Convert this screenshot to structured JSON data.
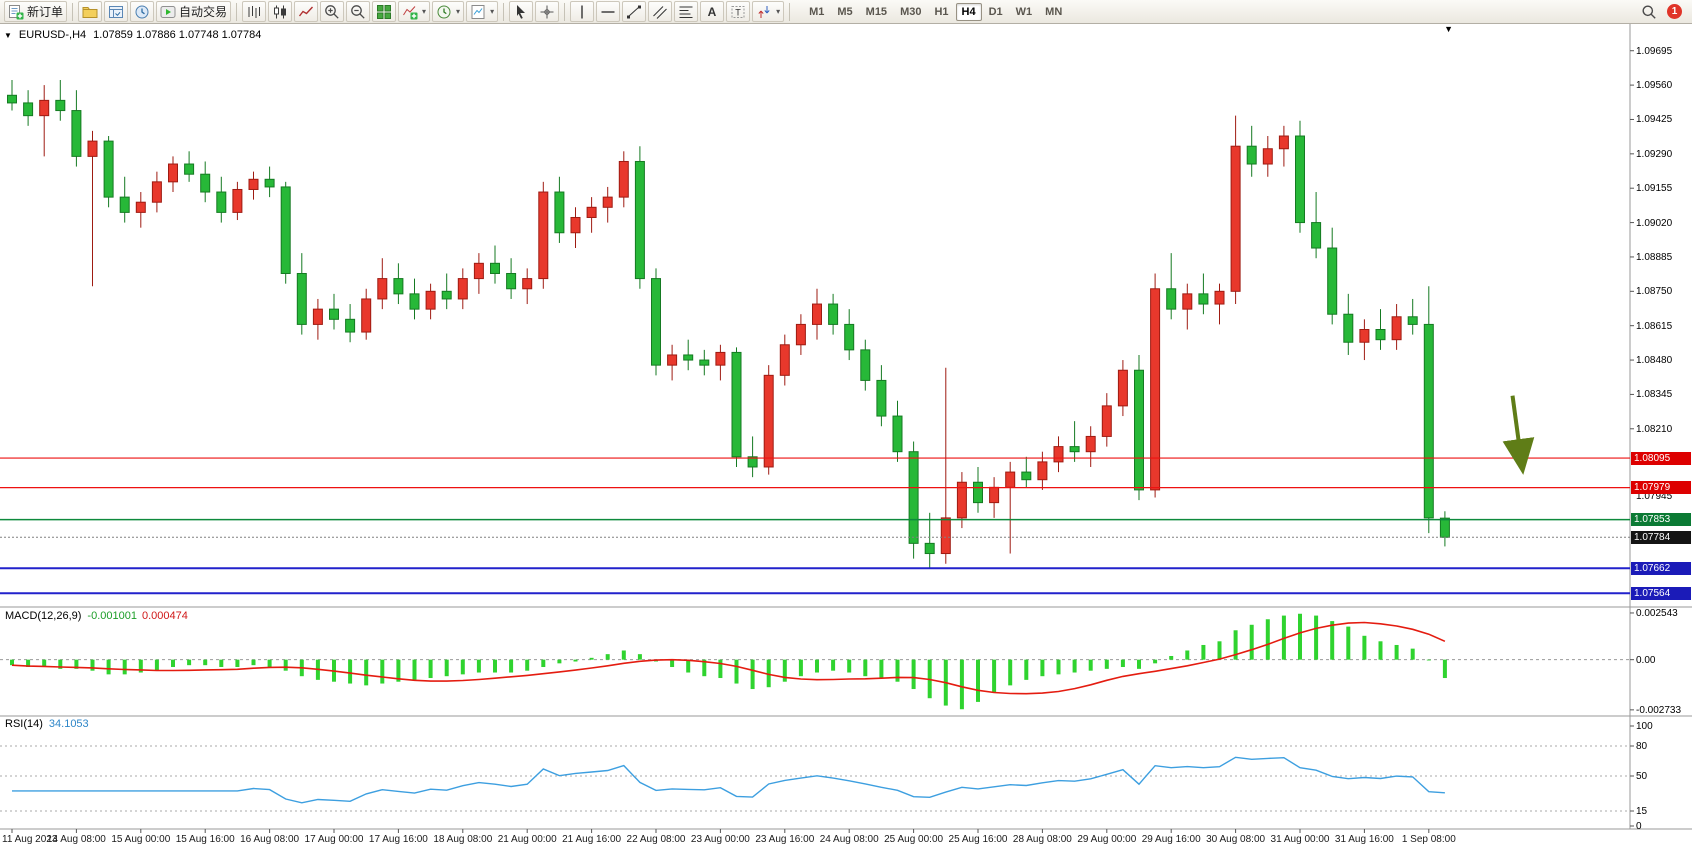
{
  "toolbar": {
    "new_order_label": "新订单",
    "autotrading_label": "自动交易",
    "timeframes": [
      "M1",
      "M5",
      "M15",
      "M30",
      "H1",
      "H4",
      "D1",
      "W1",
      "MN"
    ],
    "active_timeframe": "H4",
    "notification_count": "1"
  },
  "chart": {
    "title_symbol": "EURUSD-,H4",
    "title_ohlc": "1.07859 1.07886 1.07748 1.07784"
  },
  "chart_data": {
    "type": "candlestick",
    "symbol": "EURUSD-",
    "period": "H4",
    "price_axis_ticks": [
      "1.09695",
      "1.09560",
      "1.09425",
      "1.09290",
      "1.09155",
      "1.09020",
      "1.08885",
      "1.08750",
      "1.08615",
      "1.08480",
      "1.08345",
      "1.08210"
    ],
    "time_labels": [
      "11 Aug 2023",
      "14 Aug 08:00",
      "15 Aug 00:00",
      "15 Aug 16:00",
      "16 Aug 08:00",
      "17 Aug 00:00",
      "17 Aug 16:00",
      "18 Aug 08:00",
      "21 Aug 00:00",
      "21 Aug 16:00",
      "22 Aug 08:00",
      "23 Aug 00:00",
      "23 Aug 16:00",
      "24 Aug 08:00",
      "25 Aug 00:00",
      "25 Aug 16:00",
      "28 Aug 08:00",
      "29 Aug 00:00",
      "29 Aug 16:00",
      "30 Aug 08:00",
      "31 Aug 00:00",
      "31 Aug 16:00",
      "1 Sep 08:00"
    ],
    "label_every_bars": 4,
    "ohlc": [
      [
        1.0952,
        1.0958,
        1.0946,
        1.0949
      ],
      [
        1.0949,
        1.0954,
        1.094,
        1.0944
      ],
      [
        1.0944,
        1.0956,
        1.0928,
        1.095
      ],
      [
        1.095,
        1.0958,
        1.0942,
        1.0946
      ],
      [
        1.0946,
        1.0954,
        1.0924,
        1.0928
      ],
      [
        1.0928,
        1.0938,
        1.0877,
        1.0934
      ],
      [
        1.0934,
        1.0936,
        1.0908,
        1.0912
      ],
      [
        1.0912,
        1.092,
        1.0902,
        1.0906
      ],
      [
        1.0906,
        1.0914,
        1.09,
        1.091
      ],
      [
        1.091,
        1.0922,
        1.0906,
        1.0918
      ],
      [
        1.0918,
        1.0928,
        1.0914,
        1.0925
      ],
      [
        1.0925,
        1.093,
        1.0918,
        1.0921
      ],
      [
        1.0921,
        1.0926,
        1.091,
        1.0914
      ],
      [
        1.0914,
        1.092,
        1.0902,
        1.0906
      ],
      [
        1.0906,
        1.0918,
        1.0903,
        1.0915
      ],
      [
        1.0915,
        1.0922,
        1.0911,
        1.0919
      ],
      [
        1.0919,
        1.0924,
        1.0912,
        1.0916
      ],
      [
        1.0916,
        1.0918,
        1.0878,
        1.0882
      ],
      [
        1.0882,
        1.089,
        1.0858,
        1.0862
      ],
      [
        1.0862,
        1.0872,
        1.0856,
        1.0868
      ],
      [
        1.0868,
        1.0874,
        1.086,
        1.0864
      ],
      [
        1.0864,
        1.087,
        1.0855,
        1.0859
      ],
      [
        1.0859,
        1.0876,
        1.0856,
        1.0872
      ],
      [
        1.0872,
        1.0888,
        1.0868,
        1.088
      ],
      [
        1.088,
        1.0886,
        1.087,
        1.0874
      ],
      [
        1.0874,
        1.088,
        1.0864,
        1.0868
      ],
      [
        1.0868,
        1.0878,
        1.0864,
        1.0875
      ],
      [
        1.0875,
        1.0882,
        1.0868,
        1.0872
      ],
      [
        1.0872,
        1.0884,
        1.0868,
        1.088
      ],
      [
        1.088,
        1.089,
        1.0874,
        1.0886
      ],
      [
        1.0886,
        1.0893,
        1.0878,
        1.0882
      ],
      [
        1.0882,
        1.0888,
        1.0872,
        1.0876
      ],
      [
        1.0876,
        1.0884,
        1.087,
        1.088
      ],
      [
        1.088,
        1.0918,
        1.0876,
        1.0914
      ],
      [
        1.0914,
        1.092,
        1.0894,
        1.0898
      ],
      [
        1.0898,
        1.0908,
        1.0892,
        1.0904
      ],
      [
        1.0904,
        1.0912,
        1.0898,
        1.0908
      ],
      [
        1.0908,
        1.0916,
        1.0902,
        1.0912
      ],
      [
        1.0912,
        1.093,
        1.0908,
        1.0926
      ],
      [
        1.0926,
        1.0932,
        1.0876,
        1.088
      ],
      [
        1.088,
        1.0884,
        1.0842,
        1.0846
      ],
      [
        1.0846,
        1.0854,
        1.084,
        1.085
      ],
      [
        1.085,
        1.0856,
        1.0844,
        1.0848
      ],
      [
        1.0848,
        1.0852,
        1.0842,
        1.0846
      ],
      [
        1.0846,
        1.0854,
        1.084,
        1.0851
      ],
      [
        1.0851,
        1.0853,
        1.0806,
        1.081
      ],
      [
        1.081,
        1.0818,
        1.0802,
        1.0806
      ],
      [
        1.0806,
        1.0846,
        1.0803,
        1.0842
      ],
      [
        1.0842,
        1.0858,
        1.0838,
        1.0854
      ],
      [
        1.0854,
        1.0866,
        1.085,
        1.0862
      ],
      [
        1.0862,
        1.0876,
        1.0856,
        1.087
      ],
      [
        1.087,
        1.0874,
        1.0858,
        1.0862
      ],
      [
        1.0862,
        1.0868,
        1.0848,
        1.0852
      ],
      [
        1.0852,
        1.0856,
        1.0836,
        1.084
      ],
      [
        1.084,
        1.0846,
        1.0822,
        1.0826
      ],
      [
        1.0826,
        1.0832,
        1.0808,
        1.0812
      ],
      [
        1.0812,
        1.0816,
        1.077,
        1.0776
      ],
      [
        1.0776,
        1.0788,
        1.0766,
        1.0772
      ],
      [
        1.0772,
        1.0845,
        1.0768,
        1.0786
      ],
      [
        1.0786,
        1.0804,
        1.0782,
        1.08
      ],
      [
        1.08,
        1.0806,
        1.0788,
        1.0792
      ],
      [
        1.0792,
        1.0802,
        1.0786,
        1.0798
      ],
      [
        1.0798,
        1.0808,
        1.0772,
        1.0804
      ],
      [
        1.0804,
        1.081,
        1.0798,
        1.0801
      ],
      [
        1.0801,
        1.0812,
        1.0797,
        1.0808
      ],
      [
        1.0808,
        1.0818,
        1.0804,
        1.0814
      ],
      [
        1.0814,
        1.0824,
        1.0808,
        1.0812
      ],
      [
        1.0812,
        1.0822,
        1.0806,
        1.0818
      ],
      [
        1.0818,
        1.0835,
        1.0814,
        1.083
      ],
      [
        1.083,
        1.0848,
        1.0826,
        1.0844
      ],
      [
        1.0844,
        1.085,
        1.0793,
        1.0797
      ],
      [
        1.0797,
        1.0882,
        1.0794,
        1.0876
      ],
      [
        1.0876,
        1.089,
        1.0864,
        1.0868
      ],
      [
        1.0868,
        1.0878,
        1.086,
        1.0874
      ],
      [
        1.0874,
        1.0882,
        1.0866,
        1.087
      ],
      [
        1.087,
        1.0878,
        1.0862,
        1.0875
      ],
      [
        1.0875,
        1.0944,
        1.087,
        1.0932
      ],
      [
        1.0932,
        1.094,
        1.092,
        1.0925
      ],
      [
        1.0925,
        1.0936,
        1.092,
        1.0931
      ],
      [
        1.0931,
        1.094,
        1.0924,
        1.0936
      ],
      [
        1.0936,
        1.0942,
        1.0898,
        1.0902
      ],
      [
        1.0902,
        1.0914,
        1.0888,
        1.0892
      ],
      [
        1.0892,
        1.09,
        1.0862,
        1.0866
      ],
      [
        1.0866,
        1.0874,
        1.085,
        1.0855
      ],
      [
        1.0855,
        1.0864,
        1.0848,
        1.086
      ],
      [
        1.086,
        1.0868,
        1.0852,
        1.0856
      ],
      [
        1.0856,
        1.087,
        1.0852,
        1.0865
      ],
      [
        1.0865,
        1.0872,
        1.0858,
        1.0862
      ],
      [
        1.0862,
        1.0877,
        1.078,
        1.0786
      ],
      [
        1.07859,
        1.07886,
        1.07748,
        1.07784
      ]
    ],
    "price_lines": [
      {
        "price": 1.08095,
        "label": "1.08095",
        "color": "#ee1111",
        "width": 1.2,
        "badge_bg": "#dd0000",
        "name": "resistance-line-1"
      },
      {
        "price": 1.07979,
        "label": "1.07979",
        "color": "#ee1111",
        "width": 1.2,
        "badge_bg": "#dd0000",
        "name": "resistance-line-2"
      },
      {
        "price": 1.07853,
        "label": "1.07853",
        "color": "#0d8a3c",
        "width": 1.5,
        "badge_bg": "#0b7a34",
        "name": "support-line-green"
      },
      {
        "price": 1.07662,
        "label": "1.07662",
        "color": "#2222cc",
        "width": 2,
        "badge_bg": "#1b1bb8",
        "name": "support-line-blue-1"
      },
      {
        "price": 1.07564,
        "label": "1.07564",
        "color": "#2222cc",
        "width": 2,
        "badge_bg": "#1b1bb8",
        "name": "support-line-blue-2"
      }
    ],
    "bid_line": {
      "price": 1.07784,
      "label": "1.07784",
      "badge_bg": "#141414",
      "line_color": "#808080"
    },
    "extra_axis_label": "1.07945",
    "annotation_arrow": {
      "from_bar": 93.2,
      "from_price": 1.0834,
      "to_bar": 93.8,
      "to_price": 1.0806,
      "color": "#5f7d17"
    },
    "shift_marker_bar": 89.2,
    "colors": {
      "up_fill": "#e8382c",
      "up_stroke": "#9e1b12",
      "down_fill": "#27b838",
      "down_stroke": "#157a22"
    },
    "macd": {
      "label": "MACD(12,26,9)",
      "value_main": "-0.001001",
      "value_signal": "0.000474",
      "axis_labels": [
        "0.002543",
        "0.00",
        "-0.002733"
      ],
      "histogram": [
        -0.0003,
        -0.0004,
        -0.0004,
        -0.0005,
        -0.0005,
        -0.0006,
        -0.0008,
        -0.0008,
        -0.0007,
        -0.0006,
        -0.0004,
        -0.0003,
        -0.0003,
        -0.0004,
        -0.0004,
        -0.0003,
        -0.0004,
        -0.0006,
        -0.0009,
        -0.0011,
        -0.0012,
        -0.0013,
        -0.0014,
        -0.0013,
        -0.0012,
        -0.0011,
        -0.001,
        -0.0009,
        -0.0008,
        -0.0007,
        -0.0007,
        -0.0007,
        -0.0006,
        -0.0004,
        -0.0002,
        -0.0001,
        0.0001,
        0.0003,
        0.0005,
        0.0003,
        -0.0001,
        -0.0004,
        -0.0007,
        -0.0009,
        -0.001,
        -0.0013,
        -0.0016,
        -0.0015,
        -0.0012,
        -0.0009,
        -0.0007,
        -0.0006,
        -0.0007,
        -0.0009,
        -0.001,
        -0.0012,
        -0.0016,
        -0.0021,
        -0.0025,
        -0.0027,
        -0.0023,
        -0.0018,
        -0.0014,
        -0.0011,
        -0.0009,
        -0.0008,
        -0.0007,
        -0.0006,
        -0.0005,
        -0.0004,
        -0.0005,
        -0.0002,
        0.0002,
        0.0005,
        0.0008,
        0.001,
        0.0016,
        0.0019,
        0.0022,
        0.0024,
        0.0025,
        0.0024,
        0.0021,
        0.0018,
        0.0013,
        0.001,
        0.0008,
        0.0006,
        0.0,
        -0.001
      ],
      "histogram_color": "#2fd32f",
      "signal_color": "#e41c10"
    },
    "rsi": {
      "label": "RSI(14)",
      "value": "34.1053",
      "axis_labels": [
        "100",
        "80",
        "50",
        "15",
        "0"
      ],
      "levels": [
        80,
        50,
        15
      ],
      "color": "#3d9fe0"
    }
  }
}
